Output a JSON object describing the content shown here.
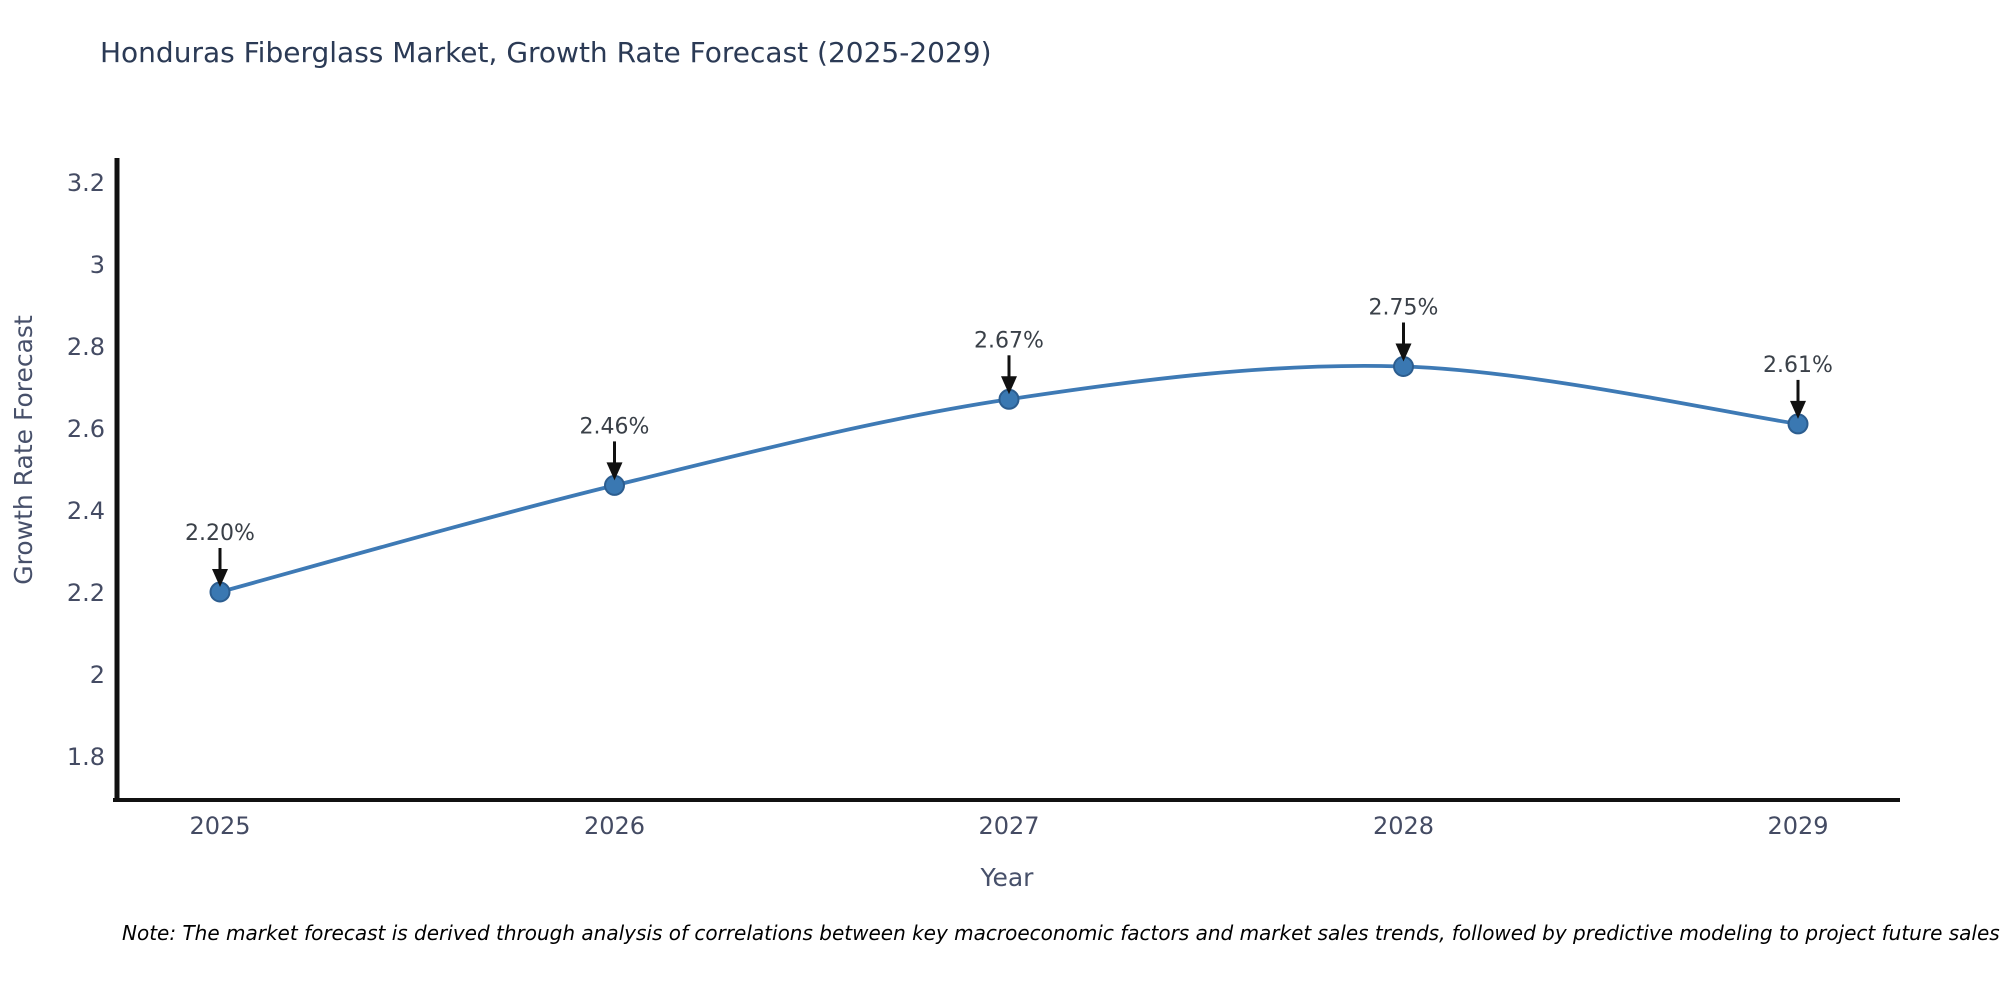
{
  "title": "Honduras Fiberglass Market, Growth Rate Forecast (2025-2029)",
  "note": "Note: The market forecast is derived through analysis of correlations between key macroeconomic factors and market sales trends, followed by predictive modeling to project future sales.",
  "chart_data": {
    "type": "line",
    "title": "Honduras Fiberglass Market, Growth Rate Forecast (2025-2029)",
    "categories": [
      "2025",
      "2026",
      "2027",
      "2028",
      "2029"
    ],
    "series": [
      {
        "name": "Growth Rate Forecast",
        "values": [
          2.2,
          2.46,
          2.67,
          2.75,
          2.61
        ]
      }
    ],
    "point_labels": [
      "2.20%",
      "2.46%",
      "2.67%",
      "2.75%",
      "2.61%"
    ],
    "xlabel": "Year",
    "ylabel": "Growth Rate Forecast",
    "ylim": [
      1.69,
      3.26
    ],
    "yticks": [
      1.8,
      2.0,
      2.2,
      2.4,
      2.6,
      2.8,
      3.0,
      3.2
    ],
    "ytick_labels": [
      "1.8",
      "2",
      "2.2",
      "2.4",
      "2.6",
      "2.8",
      "3",
      "3.2"
    ],
    "grid": false,
    "legend": "none",
    "annotations_with_arrows": true,
    "colors": {
      "line": "#3e7ab5",
      "marker_fill": "#3a78b2",
      "marker_edge": "#2c5d8f",
      "axis_line": "#111111",
      "tick_text": "#444b63",
      "axis_title_text": "#47506a",
      "annotation_text": "#3a4048",
      "arrow": "#111111",
      "title_text": "#2b3a55",
      "background": "#ffffff"
    }
  }
}
